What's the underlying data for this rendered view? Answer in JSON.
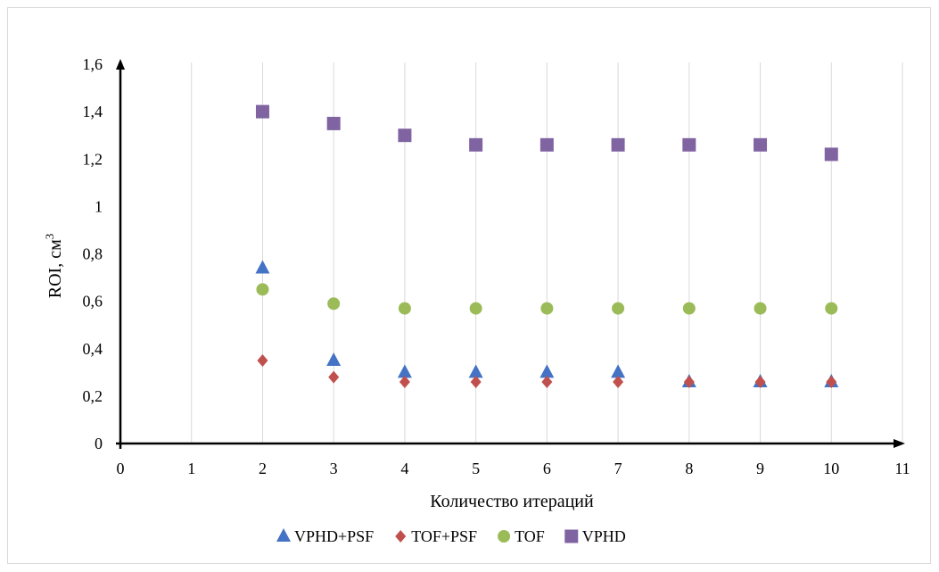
{
  "chart_data": {
    "type": "scatter",
    "title": "",
    "xlabel": "Количество итераций",
    "ylabel_main": "ROI, см",
    "ylabel_sup": "3",
    "xlim": [
      0,
      11
    ],
    "ylim": [
      0,
      1.6
    ],
    "x_ticks": [
      "0",
      "1",
      "2",
      "3",
      "4",
      "5",
      "6",
      "7",
      "8",
      "9",
      "10",
      "11"
    ],
    "y_ticks": [
      "0",
      "0,2",
      "0,4",
      "0,6",
      "0,8",
      "1",
      "1,2",
      "1,4",
      "1,6"
    ],
    "grid": "vertical",
    "legend_position": "bottom",
    "x": [
      2,
      3,
      4,
      5,
      6,
      7,
      8,
      9,
      10
    ],
    "series": [
      {
        "name": "VPHD+PSF",
        "marker": "triangle",
        "color": "#4472c4",
        "values": [
          0.74,
          0.35,
          0.3,
          0.3,
          0.3,
          0.3,
          0.26,
          0.26,
          0.26
        ]
      },
      {
        "name": "TOF+PSF",
        "marker": "diamond",
        "color": "#c0504d",
        "values": [
          0.35,
          0.28,
          0.26,
          0.26,
          0.26,
          0.26,
          0.26,
          0.26,
          0.26
        ]
      },
      {
        "name": "TOF",
        "marker": "circle",
        "color": "#9bbb59",
        "values": [
          0.65,
          0.59,
          0.57,
          0.57,
          0.57,
          0.57,
          0.57,
          0.57,
          0.57
        ]
      },
      {
        "name": "VPHD",
        "marker": "square",
        "color": "#8064a2",
        "values": [
          1.4,
          1.35,
          1.3,
          1.26,
          1.26,
          1.26,
          1.26,
          1.26,
          1.22
        ]
      }
    ]
  }
}
